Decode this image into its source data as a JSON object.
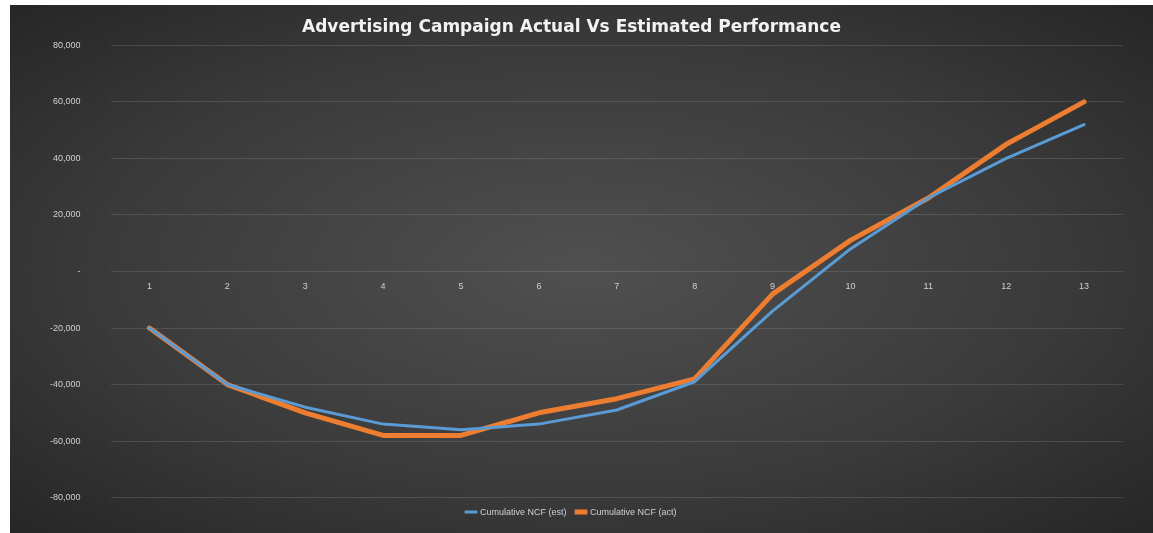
{
  "chart_data": {
    "type": "line",
    "title": "Advertising Campaign Actual Vs Estimated Performance",
    "categories": [
      "1",
      "2",
      "3",
      "4",
      "5",
      "6",
      "7",
      "8",
      "9",
      "10",
      "11",
      "12",
      "13"
    ],
    "series": [
      {
        "name": "Cumulative NCF (est)",
        "color": "#5b9bd5",
        "values": [
          -20000,
          -40000,
          -48000,
          -54000,
          -56000,
          -54000,
          -49000,
          -39000,
          -14000,
          8000,
          26000,
          40000,
          52000
        ]
      },
      {
        "name": "Cumulative NCF (act)",
        "color": "#ed7d31",
        "values": [
          -20000,
          -40000,
          -50000,
          -58000,
          -58000,
          -50000,
          -45000,
          -38000,
          -8000,
          11000,
          26000,
          45000,
          60000
        ]
      }
    ],
    "ylim": [
      -80000,
      80000
    ],
    "yticks": [
      {
        "value": -80000,
        "label": "-80,000"
      },
      {
        "value": -60000,
        "label": "-60,000"
      },
      {
        "value": -40000,
        "label": "-40,000"
      },
      {
        "value": -20000,
        "label": "-20,000"
      },
      {
        "value": 0,
        "label": "-"
      },
      {
        "value": 20000,
        "label": "20,000"
      },
      {
        "value": 40000,
        "label": "40,000"
      },
      {
        "value": 60000,
        "label": "60,000"
      },
      {
        "value": 80000,
        "label": "80,000"
      }
    ],
    "grid": "y",
    "legend": "bottom",
    "marker": "none",
    "line_style": "solid"
  }
}
